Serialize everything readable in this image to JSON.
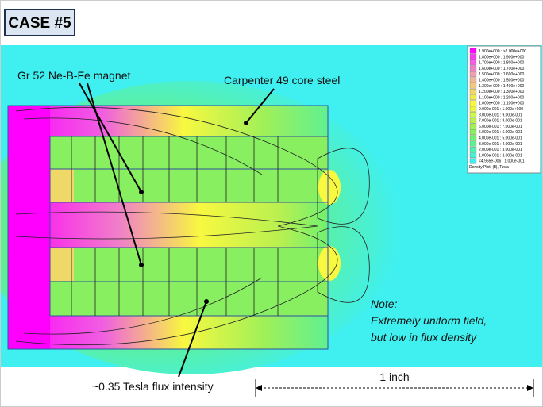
{
  "header": {
    "title": "CASE #5"
  },
  "annotations": {
    "magnet": "Gr 52 Ne-B-Fe magnet",
    "core": "Carpenter 49 core steel",
    "flux": "~0.35 Tesla flux intensity",
    "note_title": "Note:",
    "note_line1": "Extremely uniform field,",
    "note_line2": "but low in flux density",
    "scale": "1 inch"
  },
  "legend": {
    "items": [
      {
        "label": "1.900e+000 : >2.000e+000",
        "color": "#ff00ff"
      },
      {
        "label": "1.800e+000 : 1.900e+000",
        "color": "#f83cf0"
      },
      {
        "label": "1.700e+000 : 1.800e+000",
        "color": "#f060e0"
      },
      {
        "label": "1.600e+000 : 1.700e+000",
        "color": "#f080c8"
      },
      {
        "label": "1.500e+000 : 1.600e+000",
        "color": "#f0a0b0"
      },
      {
        "label": "1.400e+000 : 1.500e+000",
        "color": "#f0b898"
      },
      {
        "label": "1.300e+000 : 1.400e+000",
        "color": "#f0c880"
      },
      {
        "label": "1.200e+000 : 1.300e+000",
        "color": "#f0d868"
      },
      {
        "label": "1.100e+000 : 1.200e+000",
        "color": "#f0e850"
      },
      {
        "label": "1.000e+000 : 1.100e+000",
        "color": "#f8f840"
      },
      {
        "label": "9.000e-001 : 1.000e+000",
        "color": "#e8f840"
      },
      {
        "label": "8.000e-001 : 9.000e-001",
        "color": "#d0f848"
      },
      {
        "label": "7.000e-001 : 8.000e-001",
        "color": "#b8f050"
      },
      {
        "label": "6.000e-001 : 7.000e-001",
        "color": "#a0f058"
      },
      {
        "label": "5.000e-001 : 6.000e-001",
        "color": "#88f060"
      },
      {
        "label": "4.000e-001 : 5.000e-001",
        "color": "#70f070"
      },
      {
        "label": "3.000e-001 : 4.000e-001",
        "color": "#60f090"
      },
      {
        "label": "2.000e-001 : 3.000e-001",
        "color": "#50f0b0"
      },
      {
        "label": "1.000e-001 : 2.000e-001",
        "color": "#48f0d0"
      },
      {
        "label": "<4.965e-006 : 1.000e-001",
        "color": "#40f0f0"
      }
    ],
    "caption": "Density Plot: |B|, Tesla"
  }
}
